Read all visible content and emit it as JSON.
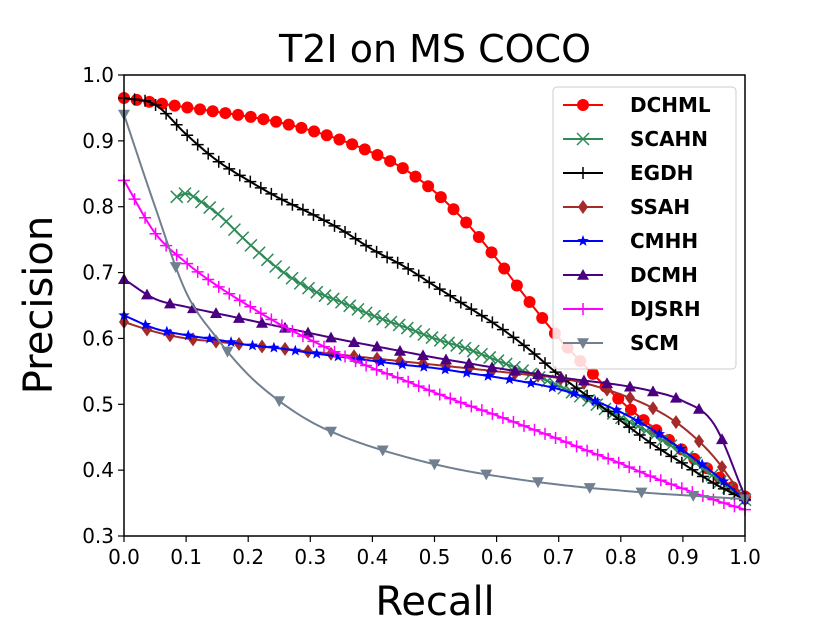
{
  "chart_data": {
    "type": "line",
    "title": "T2I on MS COCO",
    "xlabel": "Recall",
    "ylabel": "Precision",
    "xlim": [
      0.0,
      1.0
    ],
    "ylim": [
      0.3,
      1.0
    ],
    "xticks": [
      "0.0",
      "0.1",
      "0.2",
      "0.3",
      "0.4",
      "0.5",
      "0.6",
      "0.7",
      "0.8",
      "0.9",
      "1.0"
    ],
    "yticks": [
      "0.3",
      "0.4",
      "0.5",
      "0.6",
      "0.7",
      "0.8",
      "0.9",
      "1.0"
    ],
    "legend_position": "top-right",
    "series": [
      {
        "name": "DCHML",
        "color": "#ff0000",
        "marker": "circle",
        "x": [
          0.0,
          0.05,
          0.1,
          0.15,
          0.2,
          0.25,
          0.3,
          0.35,
          0.4,
          0.45,
          0.5,
          0.55,
          0.6,
          0.65,
          0.7,
          0.75,
          0.8,
          0.85,
          0.9,
          0.95,
          1.0
        ],
        "y": [
          0.965,
          0.958,
          0.951,
          0.944,
          0.937,
          0.928,
          0.916,
          0.901,
          0.882,
          0.858,
          0.823,
          0.777,
          0.721,
          0.659,
          0.601,
          0.551,
          0.505,
          0.466,
          0.43,
          0.395,
          0.36
        ]
      },
      {
        "name": "SCAHN",
        "color": "#2e8b57",
        "marker": "x",
        "x": [
          0.085,
          0.1,
          0.12,
          0.15,
          0.2,
          0.25,
          0.3,
          0.35,
          0.4,
          0.45,
          0.5,
          0.55,
          0.6,
          0.65,
          0.7,
          0.75,
          0.8,
          0.85,
          0.9,
          0.95,
          1.0
        ],
        "y": [
          0.815,
          0.82,
          0.81,
          0.79,
          0.745,
          0.705,
          0.675,
          0.655,
          0.635,
          0.618,
          0.6,
          0.585,
          0.567,
          0.548,
          0.528,
          0.505,
          0.48,
          0.455,
          0.425,
          0.39,
          0.355
        ]
      },
      {
        "name": "EGDH",
        "color": "#000000",
        "marker": "plus",
        "x": [
          0.0,
          0.05,
          0.1,
          0.15,
          0.2,
          0.25,
          0.3,
          0.35,
          0.4,
          0.45,
          0.5,
          0.55,
          0.6,
          0.65,
          0.7,
          0.75,
          0.8,
          0.85,
          0.9,
          0.95,
          1.0
        ],
        "y": [
          0.965,
          0.955,
          0.91,
          0.87,
          0.84,
          0.813,
          0.79,
          0.765,
          0.735,
          0.71,
          0.68,
          0.65,
          0.62,
          0.585,
          0.545,
          0.51,
          0.475,
          0.44,
          0.41,
          0.38,
          0.355
        ]
      },
      {
        "name": "SSAH",
        "color": "#a52a2a",
        "marker": "diamond",
        "x": [
          0.0,
          0.05,
          0.1,
          0.15,
          0.2,
          0.25,
          0.3,
          0.35,
          0.4,
          0.45,
          0.5,
          0.55,
          0.6,
          0.65,
          0.7,
          0.75,
          0.8,
          0.85,
          0.9,
          0.95,
          1.0
        ],
        "y": [
          0.625,
          0.61,
          0.6,
          0.595,
          0.59,
          0.585,
          0.58,
          0.575,
          0.57,
          0.565,
          0.56,
          0.555,
          0.55,
          0.545,
          0.54,
          0.53,
          0.515,
          0.495,
          0.465,
          0.42,
          0.355
        ]
      },
      {
        "name": "CMHH",
        "color": "#0000ff",
        "marker": "star",
        "x": [
          0.0,
          0.05,
          0.1,
          0.15,
          0.2,
          0.25,
          0.3,
          0.35,
          0.4,
          0.45,
          0.5,
          0.55,
          0.6,
          0.65,
          0.7,
          0.75,
          0.8,
          0.85,
          0.9,
          0.95,
          1.0
        ],
        "y": [
          0.635,
          0.615,
          0.605,
          0.598,
          0.59,
          0.585,
          0.578,
          0.572,
          0.566,
          0.56,
          0.555,
          0.548,
          0.541,
          0.533,
          0.523,
          0.508,
          0.488,
          0.462,
          0.43,
          0.395,
          0.355
        ]
      },
      {
        "name": "DCMH",
        "color": "#4b0082",
        "marker": "triangle-up",
        "x": [
          0.0,
          0.05,
          0.1,
          0.15,
          0.2,
          0.25,
          0.3,
          0.35,
          0.4,
          0.45,
          0.5,
          0.55,
          0.6,
          0.65,
          0.7,
          0.75,
          0.8,
          0.85,
          0.9,
          0.95,
          1.0
        ],
        "y": [
          0.69,
          0.66,
          0.648,
          0.638,
          0.628,
          0.618,
          0.608,
          0.598,
          0.589,
          0.58,
          0.571,
          0.563,
          0.555,
          0.548,
          0.541,
          0.535,
          0.529,
          0.52,
          0.505,
          0.47,
          0.36
        ]
      },
      {
        "name": "DJSRH",
        "color": "#ff00ff",
        "marker": "plus",
        "x": [
          0.0,
          0.05,
          0.1,
          0.15,
          0.2,
          0.25,
          0.3,
          0.35,
          0.4,
          0.45,
          0.5,
          0.55,
          0.6,
          0.65,
          0.7,
          0.75,
          0.8,
          0.85,
          0.9,
          0.95,
          1.0
        ],
        "y": [
          0.84,
          0.76,
          0.715,
          0.68,
          0.65,
          0.622,
          0.598,
          0.575,
          0.555,
          0.537,
          0.518,
          0.5,
          0.483,
          0.465,
          0.447,
          0.428,
          0.41,
          0.39,
          0.372,
          0.355,
          0.34
        ]
      },
      {
        "name": "SCM",
        "color": "#708090",
        "marker": "triangle-down",
        "x": [
          0.0,
          0.05,
          0.1,
          0.15,
          0.2,
          0.25,
          0.3,
          0.35,
          0.4,
          0.45,
          0.5,
          0.55,
          0.6,
          0.65,
          0.7,
          0.75,
          0.8,
          0.85,
          0.9,
          0.95,
          1.0
        ],
        "y": [
          0.94,
          0.8,
          0.67,
          0.6,
          0.545,
          0.505,
          0.474,
          0.452,
          0.435,
          0.421,
          0.409,
          0.399,
          0.391,
          0.384,
          0.378,
          0.373,
          0.369,
          0.365,
          0.362,
          0.359,
          0.356
        ]
      }
    ]
  }
}
